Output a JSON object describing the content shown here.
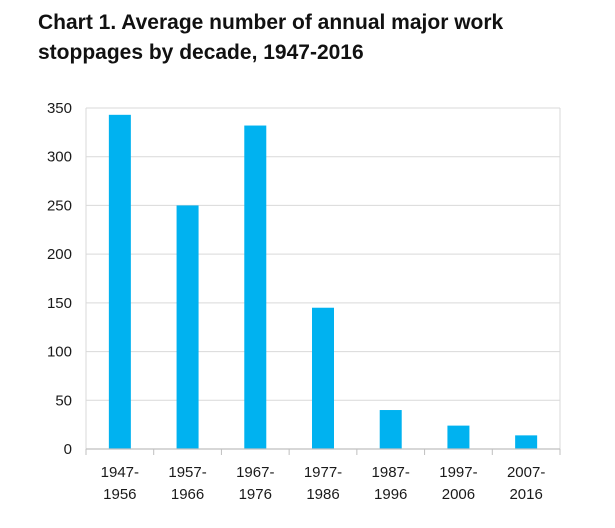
{
  "chart_data": {
    "type": "bar",
    "title": "Chart 1. Average number of annual major work stoppages by decade, 1947-2016",
    "categories": [
      [
        "1947-",
        "1956"
      ],
      [
        "1957-",
        "1966"
      ],
      [
        "1967-",
        "1976"
      ],
      [
        "1977-",
        "1986"
      ],
      [
        "1987-",
        "1996"
      ],
      [
        "1997-",
        "2006"
      ],
      [
        "2007-",
        "2016"
      ]
    ],
    "values": [
      343,
      250,
      332,
      145,
      40,
      24,
      14
    ],
    "ylim": [
      0,
      350
    ],
    "yticks": [
      0,
      50,
      100,
      150,
      200,
      250,
      300,
      350
    ],
    "grid": true,
    "legend": "none",
    "colors": {
      "bar": "#00b2f0",
      "grid": "#d9d9d9",
      "axis": "#bfbfbf"
    }
  }
}
